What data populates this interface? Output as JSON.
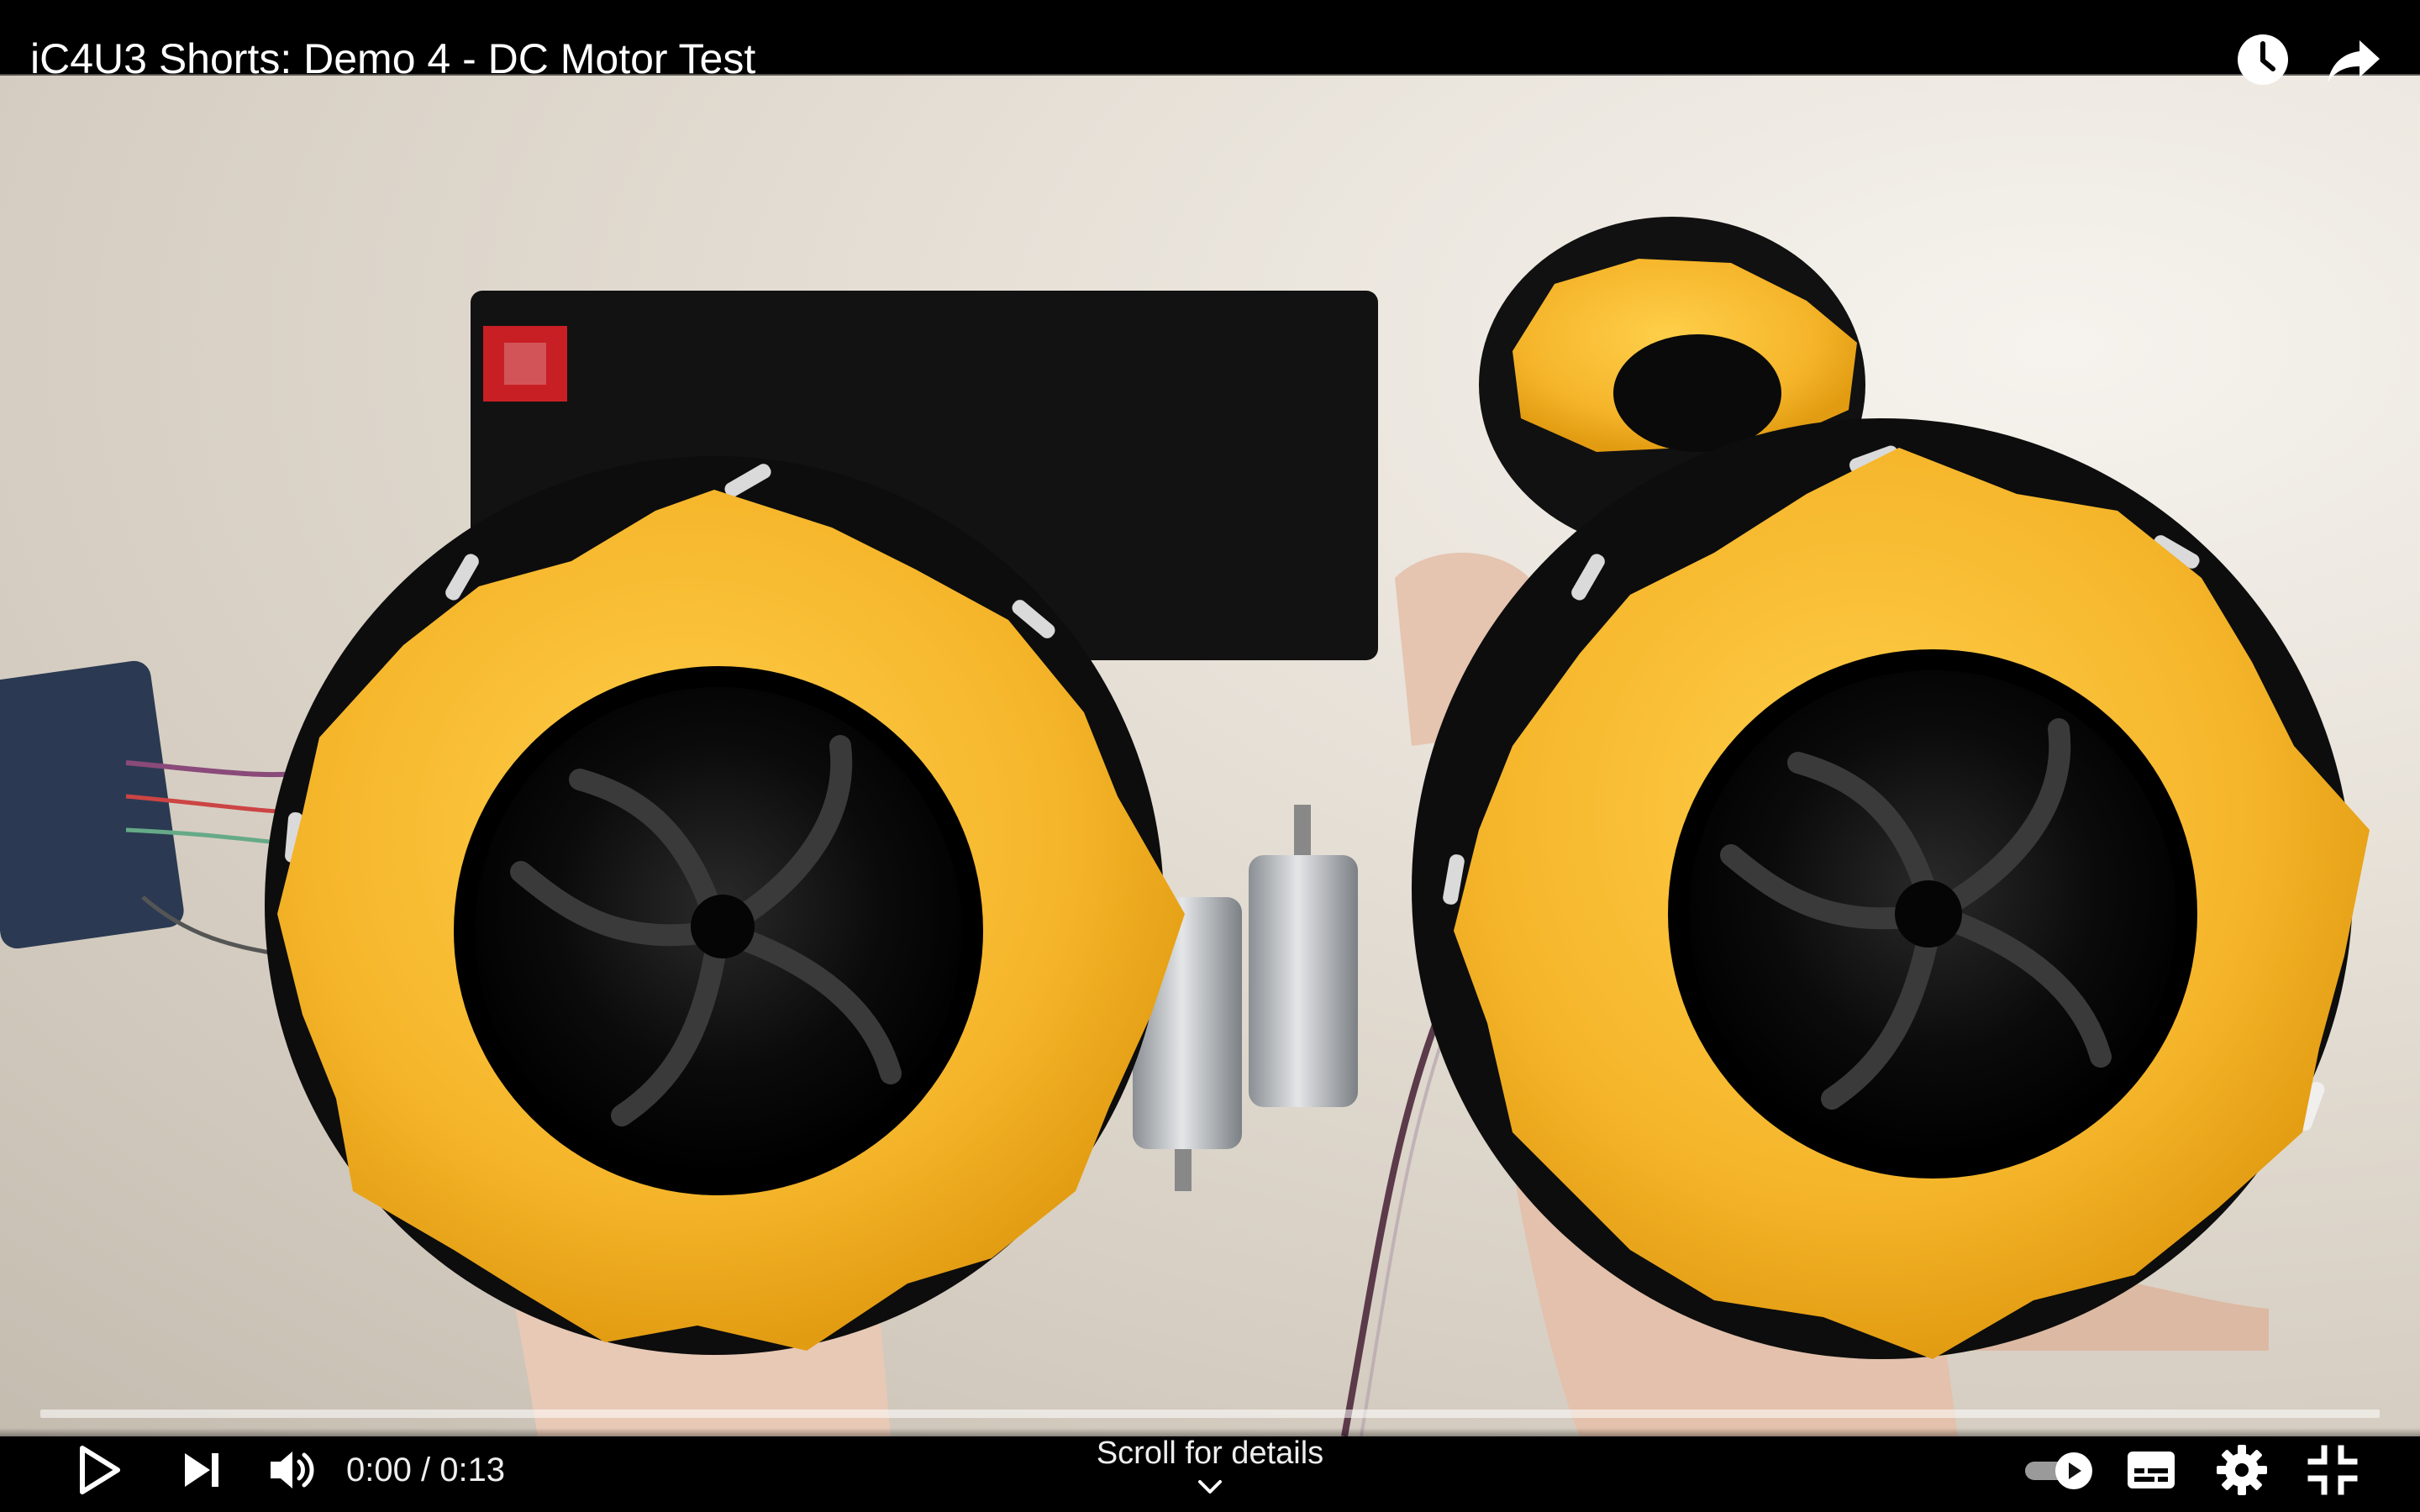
{
  "video": {
    "title": "iC4U3 Shorts: Demo 4 - DC Motor Test",
    "current_time": "0:00",
    "duration": "0:13",
    "time_separator": " / ",
    "progress_fraction": 0.0,
    "scroll_hint": "Scroll for details"
  },
  "icons": {
    "watch_later": "clock-icon",
    "share": "share-arrow-icon",
    "play": "play-icon",
    "next": "skip-next-icon",
    "volume": "volume-icon",
    "autoplay": "autoplay-toggle-icon",
    "captions": "subtitles-icon",
    "settings": "gear-icon",
    "exit_fullscreen": "exit-fullscreen-icon",
    "scroll": "chevron-down-icon"
  },
  "colors": {
    "progress_played": "#ff0000",
    "wheel_yellow": "#f5b72a",
    "wheel_black": "#0d0d0d"
  }
}
